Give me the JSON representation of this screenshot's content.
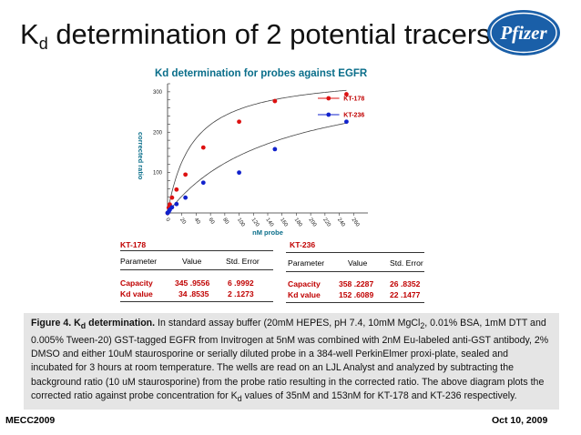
{
  "slide": {
    "title_main": "K",
    "title_sub": "d",
    "title_rest": " determination of 2 potential tracers",
    "logo_text": "Pfizer"
  },
  "chart_data": {
    "type": "scatter",
    "title": "Kd determination for probes against EGFR",
    "xlabel": "nM probe",
    "ylabel": "corrected ratio",
    "xlim": [
      0,
      280
    ],
    "ylim": [
      0,
      320
    ],
    "x_ticks": [
      "0",
      "20",
      "40",
      "60",
      "80",
      "100",
      "120",
      "140",
      "160",
      "180",
      "200",
      "220",
      "240",
      "260"
    ],
    "y_ticks": [
      "100",
      "200",
      "300"
    ],
    "legend_position": "top-right",
    "series": [
      {
        "name": "KT-178",
        "color": "#dd1111",
        "points": [
          [
            0,
            0
          ],
          [
            1.6,
            13
          ],
          [
            3.1,
            21
          ],
          [
            6.2,
            38
          ],
          [
            12.5,
            58
          ],
          [
            25,
            95
          ],
          [
            50,
            162
          ],
          [
            100,
            226
          ],
          [
            150,
            277
          ],
          [
            250,
            294
          ]
        ],
        "fit": {
          "capacity": 345.9556,
          "kd": 34.8535
        }
      },
      {
        "name": "KT-236",
        "color": "#1122cc",
        "points": [
          [
            0,
            0
          ],
          [
            1.6,
            3
          ],
          [
            3.1,
            8
          ],
          [
            6.2,
            14
          ],
          [
            12.5,
            22
          ],
          [
            25,
            38
          ],
          [
            50,
            75
          ],
          [
            100,
            100
          ],
          [
            150,
            158
          ],
          [
            250,
            226
          ]
        ],
        "fit": {
          "capacity": 358.2287,
          "kd": 152.6089
        }
      }
    ]
  },
  "tables": {
    "kt178": {
      "name": "KT-178",
      "headers": [
        "Parameter",
        "Value",
        "Std. Error"
      ],
      "rows": [
        {
          "param": "Capacity",
          "value": "345 .9556",
          "error": "6 .9992"
        },
        {
          "param": "Kd value",
          "value": "34 .8535",
          "error": "2 .1273"
        }
      ]
    },
    "kt236": {
      "name": "KT-236",
      "headers": [
        "Parameter",
        "Value",
        "Std. Error"
      ],
      "rows": [
        {
          "param": "Capacity",
          "value": "358 .2287",
          "error": "26 .8352"
        },
        {
          "param": "Kd value",
          "value": "152 .6089",
          "error": "22 .1477"
        }
      ]
    }
  },
  "caption": {
    "label": "Figure 4.  K",
    "label_sub": "d",
    "label_rest": " determination.",
    "part1": "  In standard assay buffer (20mM HEPES, pH 7.4, 10mM MgCl",
    "part1_sub": "2",
    "part2": ", 0.01% BSA, 1mM DTT and 0.005% Tween-20) GST-tagged EGFR from Invitrogen at 5nM was combined with 2nM Eu-labeled anti-GST antibody, 2% DMSO and either 10uM staurosporine or serially diluted probe in a 384-well PerkinElmer proxi-plate, sealed and incubated for 3 hours at room temperature.  The wells are read on an LJL Analyst and analyzed by subtracting the background ratio (10 uM staurosporine) from the probe ratio resulting in the corrected ratio.  The above diagram plots the corrected ratio against probe concentration for K",
    "part2_sub": "d",
    "part3": " values of 35nM and 153nM for KT-178 and KT-236 respectively."
  },
  "footer": {
    "left": "MECC2009",
    "right": "Oct 10, 2009"
  }
}
